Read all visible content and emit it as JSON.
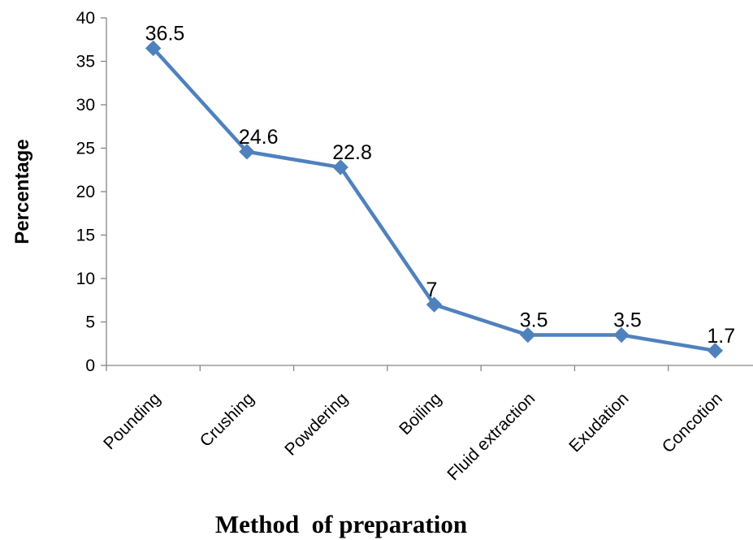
{
  "chart_data": {
    "type": "line",
    "title": "",
    "xlabel": "Method  of preparation",
    "ylabel": "Percentage",
    "categories": [
      "Pounding",
      "Crushing",
      "Powdering",
      "Boiling",
      "Fluid extraction",
      "Exudation",
      "Concotion"
    ],
    "series": [
      {
        "values": [
          36.5,
          24.6,
          22.8,
          7,
          3.5,
          3.5,
          1.7
        ],
        "data_labels": [
          "36.5",
          "24.6",
          "22.8",
          "7",
          "3.5",
          "3.5",
          "1.7"
        ],
        "color": "#4F81BD",
        "marker": "diamond"
      }
    ],
    "ylim": [
      0,
      40
    ],
    "yticks": [
      "0",
      "5",
      "10",
      "15",
      "20",
      "25",
      "30",
      "35",
      "40"
    ],
    "grid": false,
    "legend": "none"
  }
}
